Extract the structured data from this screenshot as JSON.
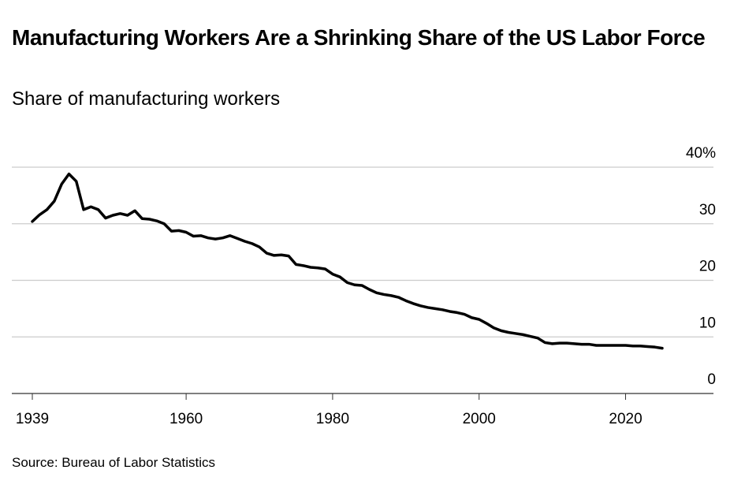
{
  "chart_data": {
    "type": "line",
    "title": "Manufacturing Workers Are a Shrinking Share of the US Labor Force",
    "subtitle": "Share of manufacturing workers",
    "source": "Source: Bureau of Labor Statistics",
    "x": [
      1939,
      1940,
      1941,
      1942,
      1943,
      1944,
      1945,
      1946,
      1947,
      1948,
      1949,
      1950,
      1951,
      1952,
      1953,
      1954,
      1955,
      1956,
      1957,
      1958,
      1959,
      1960,
      1961,
      1962,
      1963,
      1964,
      1965,
      1966,
      1967,
      1968,
      1969,
      1970,
      1971,
      1972,
      1973,
      1974,
      1975,
      1976,
      1977,
      1978,
      1979,
      1980,
      1981,
      1982,
      1983,
      1984,
      1985,
      1986,
      1987,
      1988,
      1989,
      1990,
      1991,
      1992,
      1993,
      1994,
      1995,
      1996,
      1997,
      1998,
      1999,
      2000,
      2001,
      2002,
      2003,
      2004,
      2005,
      2006,
      2007,
      2008,
      2009,
      2010,
      2011,
      2012,
      2013,
      2014,
      2015,
      2016,
      2017,
      2018,
      2019,
      2020,
      2021,
      2022,
      2023,
      2024,
      2025
    ],
    "values": [
      30.4,
      31.6,
      32.5,
      34.0,
      37.0,
      38.8,
      37.5,
      32.5,
      33.0,
      32.5,
      31.0,
      31.5,
      31.8,
      31.5,
      32.3,
      30.9,
      30.8,
      30.5,
      30.0,
      28.7,
      28.8,
      28.5,
      27.8,
      27.9,
      27.5,
      27.3,
      27.5,
      27.9,
      27.4,
      26.9,
      26.5,
      25.9,
      24.8,
      24.4,
      24.5,
      24.3,
      22.8,
      22.6,
      22.3,
      22.2,
      22.0,
      21.1,
      20.6,
      19.6,
      19.2,
      19.1,
      18.4,
      17.8,
      17.5,
      17.3,
      17.0,
      16.4,
      15.9,
      15.5,
      15.2,
      15.0,
      14.8,
      14.5,
      14.3,
      14.0,
      13.4,
      13.1,
      12.4,
      11.6,
      11.1,
      10.8,
      10.6,
      10.4,
      10.1,
      9.8,
      9.0,
      8.8,
      8.9,
      8.9,
      8.8,
      8.7,
      8.7,
      8.5,
      8.5,
      8.5,
      8.5,
      8.5,
      8.4,
      8.4,
      8.3,
      8.2,
      8.0
    ],
    "color": "#000000",
    "xlim": [
      1936.2,
      2032
    ],
    "xticks": [
      1939,
      1960,
      1980,
      2000,
      2020
    ],
    "ylim": [
      0,
      40
    ],
    "yticks": [
      0,
      10,
      20,
      30,
      {
        "value": 40,
        "label": "40%"
      }
    ],
    "grid": true
  }
}
